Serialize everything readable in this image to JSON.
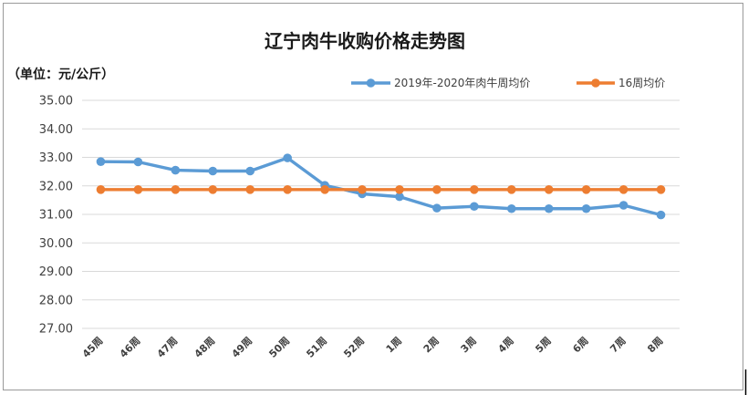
{
  "chart_data": {
    "type": "line",
    "title": "辽宁肉牛收购价格走势图",
    "unit_label": "（单位：元/公斤）",
    "categories": [
      "45周",
      "46周",
      "47周",
      "48周",
      "49周",
      "50周",
      "51周",
      "52周",
      "1周",
      "2周",
      "3周",
      "4周",
      "5周",
      "6周",
      "7周",
      "8周"
    ],
    "series": [
      {
        "name": "2019年-2020年肉牛周均价",
        "color": "#5b9bd5",
        "values": [
          32.85,
          32.84,
          32.55,
          32.52,
          32.52,
          32.98,
          32.02,
          31.72,
          31.62,
          31.22,
          31.28,
          31.2,
          31.2,
          31.2,
          31.32,
          30.98
        ]
      },
      {
        "name": "16周均价",
        "color": "#ed7d31",
        "values": [
          31.87,
          31.87,
          31.87,
          31.87,
          31.87,
          31.87,
          31.87,
          31.87,
          31.87,
          31.87,
          31.87,
          31.87,
          31.87,
          31.87,
          31.87,
          31.87
        ]
      }
    ],
    "ylim": [
      27,
      35
    ],
    "yticks": [
      "27.00",
      "28.00",
      "29.00",
      "30.00",
      "31.00",
      "32.00",
      "33.00",
      "34.00",
      "35.00"
    ],
    "legend_position": "top-right",
    "grid": true
  }
}
